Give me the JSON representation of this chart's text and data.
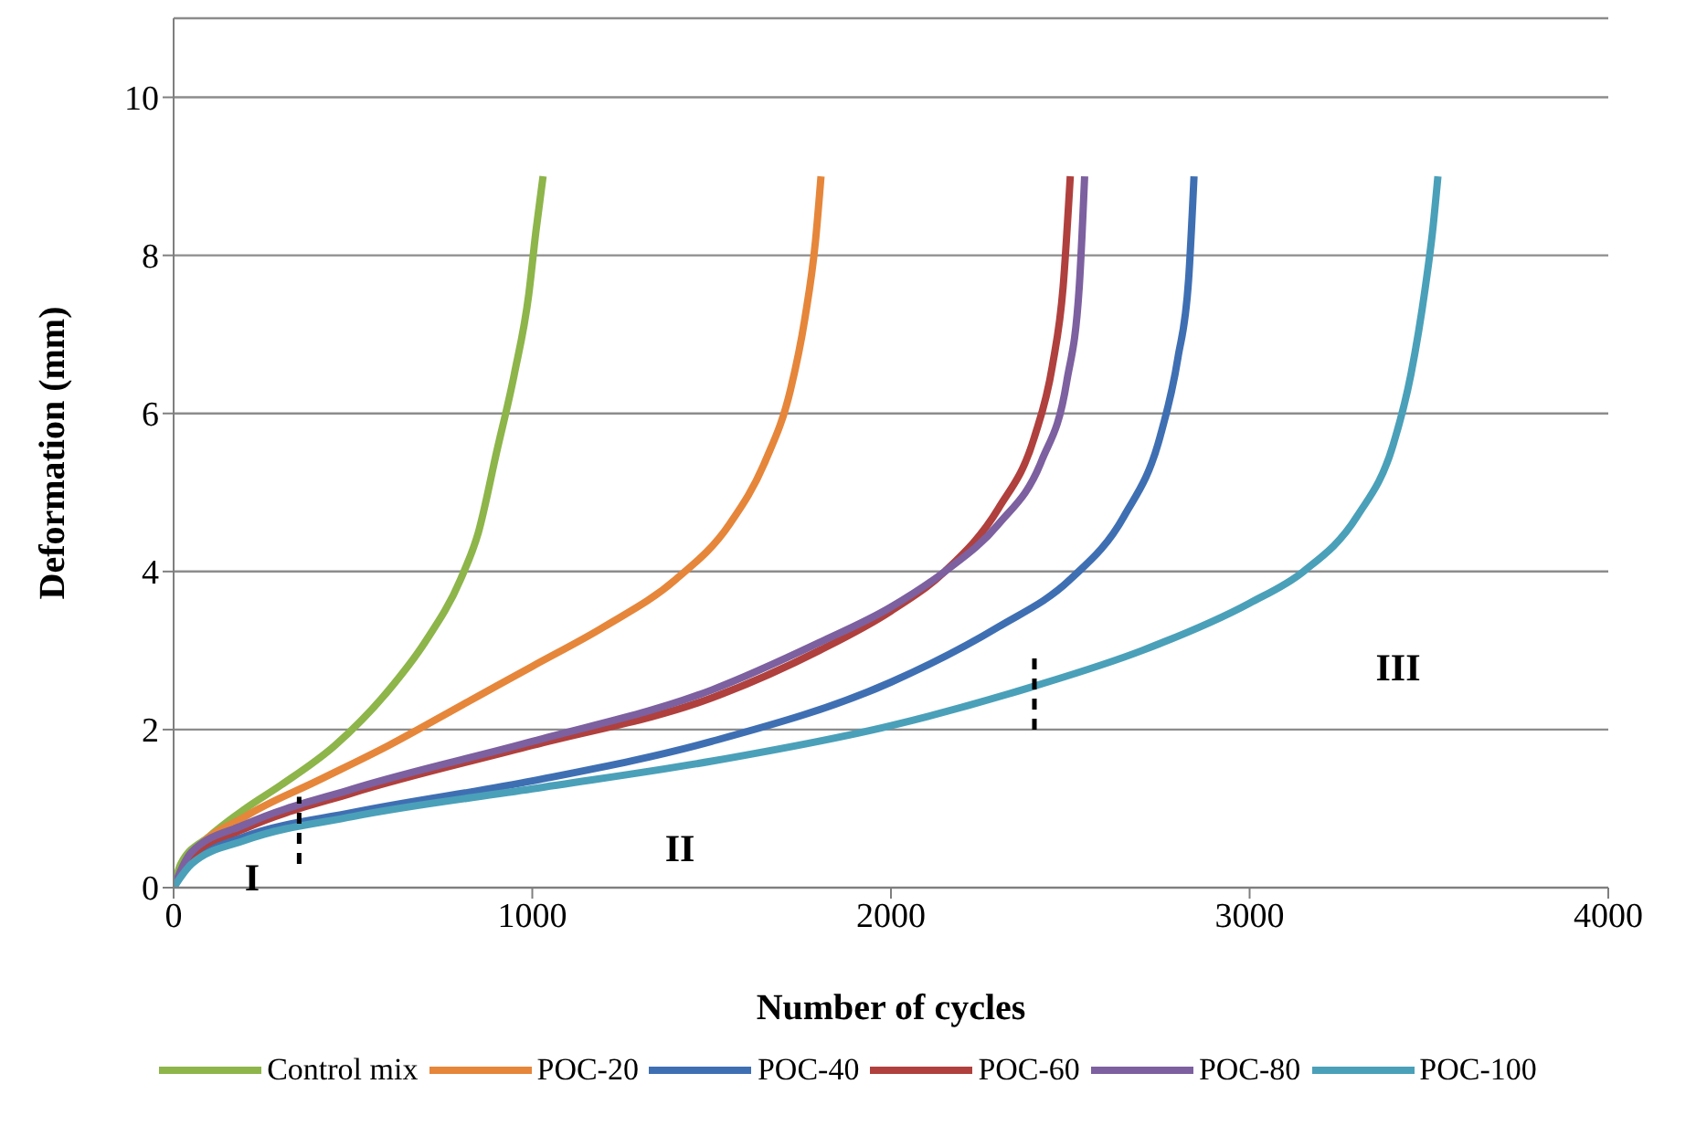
{
  "chart_data": {
    "type": "line",
    "xlabel": "Number of cycles",
    "ylabel": "Deformation (mm)",
    "xlim": [
      0,
      4000
    ],
    "xticks": [
      0,
      1000,
      2000,
      3000,
      4000
    ],
    "ylim": [
      0,
      11
    ],
    "yticks": [
      0,
      2,
      4,
      6,
      8,
      10
    ],
    "grid": "y",
    "legend": "bottom",
    "marker": "none",
    "series": [
      {
        "name": "Control mix",
        "color": "#8db54a",
        "x": [
          0,
          20,
          100,
          200,
          300,
          450,
          600,
          700,
          800,
          850,
          900,
          950,
          990,
          1010,
          1030
        ],
        "values": [
          0,
          0.3,
          0.65,
          1.0,
          1.3,
          1.8,
          2.5,
          3.1,
          3.9,
          4.5,
          5.5,
          6.5,
          7.5,
          8.3,
          9
        ]
      },
      {
        "name": "POC-20",
        "color": "#e6863a",
        "x": [
          0,
          50,
          200,
          400,
          600,
          800,
          1000,
          1200,
          1400,
          1550,
          1650,
          1720,
          1760,
          1790,
          1805
        ],
        "values": [
          0,
          0.4,
          0.9,
          1.35,
          1.8,
          2.3,
          2.8,
          3.3,
          3.9,
          4.6,
          5.4,
          6.3,
          7.2,
          8.2,
          9
        ]
      },
      {
        "name": "POC-40",
        "color": "#3f6fb3",
        "x": [
          0,
          50,
          200,
          500,
          1000,
          1500,
          2000,
          2300,
          2500,
          2650,
          2750,
          2800,
          2830,
          2845
        ],
        "values": [
          0,
          0.35,
          0.65,
          0.95,
          1.35,
          1.85,
          2.6,
          3.3,
          3.9,
          4.7,
          5.7,
          6.7,
          7.7,
          9
        ]
      },
      {
        "name": "POC-60",
        "color": "#b0403d",
        "x": [
          0,
          50,
          200,
          500,
          1000,
          1500,
          1800,
          2000,
          2150,
          2300,
          2400,
          2450,
          2480,
          2500
        ],
        "values": [
          0,
          0.4,
          0.75,
          1.2,
          1.8,
          2.4,
          3.0,
          3.5,
          4.0,
          4.8,
          5.7,
          6.6,
          7.6,
          9
        ]
      },
      {
        "name": "POC-80",
        "color": "#7d60a0",
        "x": [
          0,
          50,
          200,
          500,
          1000,
          1500,
          1800,
          2000,
          2150,
          2300,
          2420,
          2490,
          2525,
          2540
        ],
        "values": [
          0,
          0.45,
          0.8,
          1.25,
          1.85,
          2.5,
          3.1,
          3.55,
          4.0,
          4.6,
          5.4,
          6.4,
          7.6,
          9
        ]
      },
      {
        "name": "POC-100",
        "color": "#4aa0b9",
        "x": [
          0,
          50,
          200,
          500,
          1000,
          1500,
          2000,
          2400,
          2700,
          3000,
          3150,
          3300,
          3400,
          3450,
          3490,
          3510,
          3525
        ],
        "values": [
          0,
          0.3,
          0.6,
          0.9,
          1.25,
          1.6,
          2.05,
          2.55,
          3.0,
          3.6,
          4.0,
          4.7,
          5.6,
          6.5,
          7.6,
          8.3,
          9
        ]
      },
      {
        "color": "#000000",
        "line_style": "dashed",
        "x": [
          350,
          350
        ],
        "values": [
          0.3,
          1.15
        ]
      },
      {
        "color": "#000000",
        "line_style": "dashed",
        "x": [
          2400,
          2400
        ],
        "values": [
          2.0,
          2.95
        ]
      }
    ],
    "annotations": [
      "I",
      "II",
      "III"
    ]
  }
}
